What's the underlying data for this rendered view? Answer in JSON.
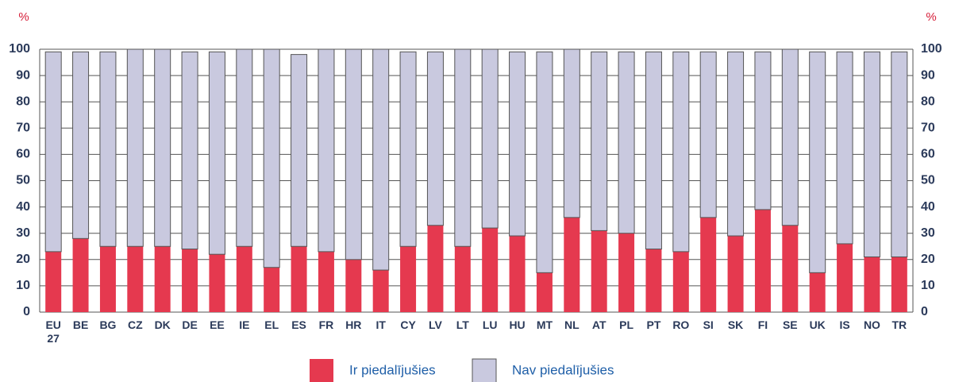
{
  "chart_data": {
    "type": "stacked_bar",
    "y_unit_left": "%",
    "y_unit_right": "%",
    "categories": [
      "EU 27",
      "BE",
      "BG",
      "CZ",
      "DK",
      "DE",
      "EE",
      "IE",
      "EL",
      "ES",
      "FR",
      "HR",
      "IT",
      "CY",
      "LV",
      "LT",
      "LU",
      "HU",
      "MT",
      "NL",
      "AT",
      "PL",
      "PT",
      "RO",
      "SI",
      "SK",
      "FI",
      "SE",
      "UK",
      "IS",
      "NO",
      "TR"
    ],
    "series": [
      {
        "name": "Ir piedalījušies",
        "color": "#e5394f",
        "values": [
          23,
          28,
          25,
          25,
          25,
          24,
          22,
          25,
          17,
          25,
          23,
          20,
          16,
          25,
          33,
          25,
          32,
          29,
          15,
          36,
          31,
          30,
          24,
          23,
          36,
          29,
          39,
          33,
          15,
          26,
          21,
          21
        ]
      },
      {
        "name": "Nav piedalījušies",
        "color": "#c9c9df",
        "values": [
          76,
          71,
          74,
          75,
          75,
          75,
          77,
          75,
          83,
          73,
          77,
          80,
          84,
          74,
          66,
          75,
          68,
          70,
          84,
          64,
          68,
          69,
          75,
          76,
          63,
          70,
          60,
          67,
          84,
          73,
          78,
          78
        ]
      }
    ],
    "ylim": [
      0,
      100
    ],
    "yticks": [
      0,
      10,
      20,
      30,
      40,
      50,
      60,
      70,
      80,
      90,
      100
    ],
    "grid": true
  }
}
